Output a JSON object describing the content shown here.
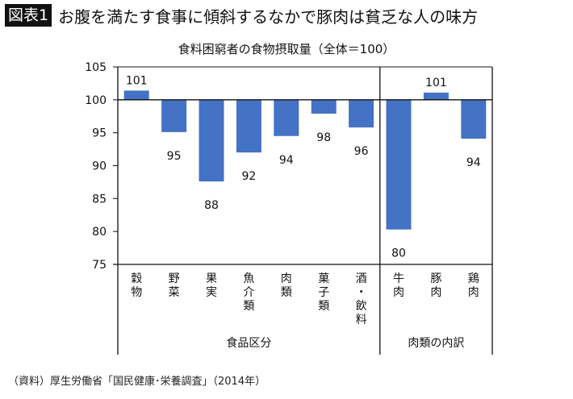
{
  "header": {
    "badge": "図表1",
    "title": "お腹を満たす食事に傾斜するなかで豚肉は貧乏な人の味方"
  },
  "chart_data": {
    "type": "bar",
    "title": "食料困窮者の食物摂取量（全体＝100）",
    "baseline": 100,
    "ylim": [
      75,
      105
    ],
    "yticks": [
      75,
      80,
      85,
      90,
      95,
      100,
      105
    ],
    "categories": [
      "穀物",
      "野菜",
      "果実",
      "魚介類",
      "肉類",
      "菓子類",
      "酒・飲料",
      "牛肉",
      "豚肉",
      "鶏肉"
    ],
    "values": [
      101.4,
      95.1,
      87.6,
      92.0,
      94.5,
      97.9,
      95.8,
      80.3,
      101.1,
      94.1
    ],
    "data_labels": [
      "101",
      "95",
      "88",
      "92",
      "94",
      "98",
      "96",
      "80",
      "101",
      "94"
    ],
    "groups": [
      {
        "label": "食品区分",
        "count": 7
      },
      {
        "label": "肉類の内訳",
        "count": 3
      }
    ],
    "bar_color": "#4472C4"
  },
  "source": "（資料）厚生労働省「国民健康･栄養調査」（2014年）"
}
